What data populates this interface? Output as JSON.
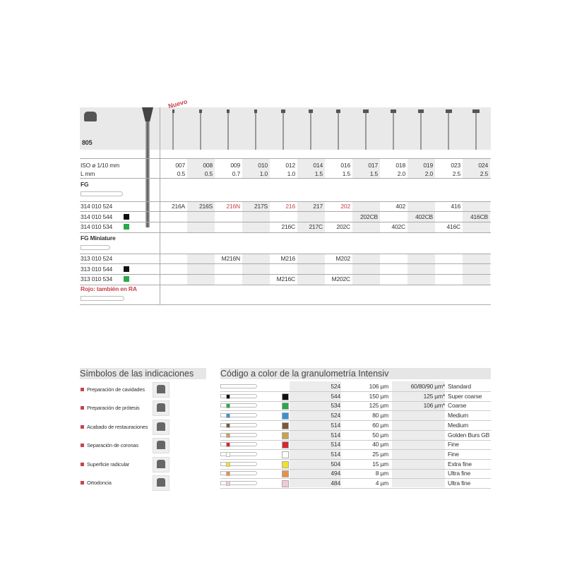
{
  "product": {
    "code": "805",
    "new_badge": "Nuevo"
  },
  "labels": {
    "iso": "ISO ø 1/10 mm",
    "lmm": "L mm",
    "fg": "FG",
    "fg_mini": "FG Miniature",
    "rojo": "Rojo: también en RA"
  },
  "columns": {
    "iso": [
      "007",
      "008",
      "009",
      "010",
      "012",
      "014",
      "016",
      "017",
      "018",
      "019",
      "023",
      "024"
    ],
    "lmm": [
      "0.5",
      "0.5",
      "0.7",
      "1.0",
      "1.0",
      "1.5",
      "1.5",
      "1.5",
      "2.0",
      "2.0",
      "2.5",
      "2.5"
    ]
  },
  "fg_rows": [
    {
      "ref": "314 010 524",
      "swatch": "",
      "cells": [
        "216A",
        "216S",
        "216N",
        "217S",
        "216",
        "217",
        "202",
        "",
        "402",
        "",
        "416",
        ""
      ],
      "red": [
        2,
        4,
        6
      ]
    },
    {
      "ref": "314 010 544",
      "swatch": "#111111",
      "cells": [
        "",
        "",
        "",
        "",
        "",
        "",
        "",
        "202CB",
        "",
        "402CB",
        "",
        "416CB"
      ],
      "red": []
    },
    {
      "ref": "314 010 534",
      "swatch": "#2aa84a",
      "cells": [
        "",
        "",
        "",
        "",
        "216C",
        "217C",
        "202C",
        "",
        "402C",
        "",
        "416C",
        ""
      ],
      "red": []
    }
  ],
  "mini_rows": [
    {
      "ref": "313 010 524",
      "swatch": "",
      "cells": [
        "",
        "",
        "M216N",
        "",
        "M216",
        "",
        "M202",
        "",
        "",
        "",
        "",
        ""
      ],
      "red": []
    },
    {
      "ref": "313 010 544",
      "swatch": "#111111",
      "cells": [
        "",
        "",
        "",
        "",
        "",
        "",
        "",
        "",
        "",
        "",
        "",
        ""
      ],
      "red": []
    },
    {
      "ref": "313 010 534",
      "swatch": "#2aa84a",
      "cells": [
        "",
        "",
        "",
        "",
        "M216C",
        "",
        "M202C",
        "",
        "",
        "",
        "",
        ""
      ],
      "red": []
    }
  ],
  "indications": {
    "title": "Símbolos de las indicaciones",
    "items": [
      "Preparación de cavidades",
      "Preparación de prótesis",
      "Acabado de restauraciones",
      "Separación de coronas",
      "Superficie radicular",
      "Ortodoncia"
    ]
  },
  "grit": {
    "title": "Código a color de la granulometría Intensiv",
    "rows": [
      {
        "color": "",
        "code": "524",
        "size": "106 µm",
        "alt": "60/80/90 µm*",
        "name": "Standard"
      },
      {
        "color": "#111111",
        "code": "544",
        "size": "150 µm",
        "alt": "125 µm*",
        "name": "Super coarse"
      },
      {
        "color": "#2aa84a",
        "code": "534",
        "size": "125 µm",
        "alt": "106 µm*",
        "name": "Coarse"
      },
      {
        "color": "#3d8fd6",
        "code": "524",
        "size": "80 µm",
        "alt": "",
        "name": "Medium"
      },
      {
        "color": "#7a5a3a",
        "code": "514",
        "size": "60 µm",
        "alt": "",
        "name": "Medium"
      },
      {
        "color": "#c9a24e",
        "code": "514",
        "size": "50 µm",
        "alt": "",
        "name": "Golden Burs GB"
      },
      {
        "color": "#d8262e",
        "code": "514",
        "size": "40 µm",
        "alt": "",
        "name": "Fine"
      },
      {
        "color": "#ffffff",
        "code": "514",
        "size": "25 µm",
        "alt": "",
        "name": "Fine"
      },
      {
        "color": "#f2e02a",
        "code": "504",
        "size": "15 µm",
        "alt": "",
        "name": "Extra fine"
      },
      {
        "color": "#e8904a",
        "code": "494",
        "size": "8 µm",
        "alt": "",
        "name": "Ultra fine"
      },
      {
        "color": "#f2c9dc",
        "code": "484",
        "size": "4 µm",
        "alt": "",
        "name": "Ultra fine"
      }
    ]
  }
}
